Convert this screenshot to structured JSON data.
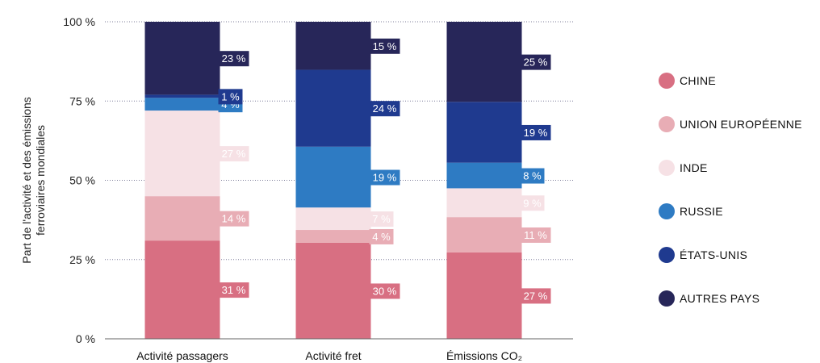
{
  "chart_data": {
    "type": "bar",
    "stacked": true,
    "normalized": true,
    "ylabel": "Part de l'activité et des émissions ferroviaires mondiales",
    "ylabel_lines": [
      "Part de l'activité et des émissions",
      "ferroviaires mondiales"
    ],
    "yticks": [
      "0 %",
      "25 %",
      "50 %",
      "75 %",
      "100 %"
    ],
    "ylim": [
      0,
      100
    ],
    "grid": true,
    "legend_position": "right",
    "categories": [
      "Activité passagers",
      "Activité fret",
      "Émissions CO₂"
    ],
    "series": [
      {
        "name": "CHINE",
        "color": "#d86f82",
        "label_bg": "#d86f82",
        "label_color": "#ffffff",
        "values": [
          31,
          30,
          27
        ]
      },
      {
        "name": "UNION EUROPÉENNE",
        "color": "#e8adb5",
        "label_bg": "#e8adb5",
        "label_color": "#ffffff",
        "values": [
          14,
          4,
          11
        ]
      },
      {
        "name": "INDE",
        "color": "#f6e1e5",
        "label_bg": "#f6e1e5",
        "label_color": "#ffffff",
        "values": [
          27,
          7,
          9
        ]
      },
      {
        "name": "RUSSIE",
        "color": "#2e7bc3",
        "label_bg": "#2e7bc3",
        "label_color": "#ffffff",
        "values": [
          4,
          19,
          8
        ]
      },
      {
        "name": "ÉTATS-UNIS",
        "color": "#1f3a8f",
        "label_bg": "#1f3a8f",
        "label_color": "#ffffff",
        "values": [
          1,
          24,
          19
        ]
      },
      {
        "name": "AUTRES PAYS",
        "color": "#272659",
        "label_bg": "#272659",
        "label_color": "#ffffff",
        "values": [
          23,
          15,
          25
        ]
      }
    ]
  }
}
